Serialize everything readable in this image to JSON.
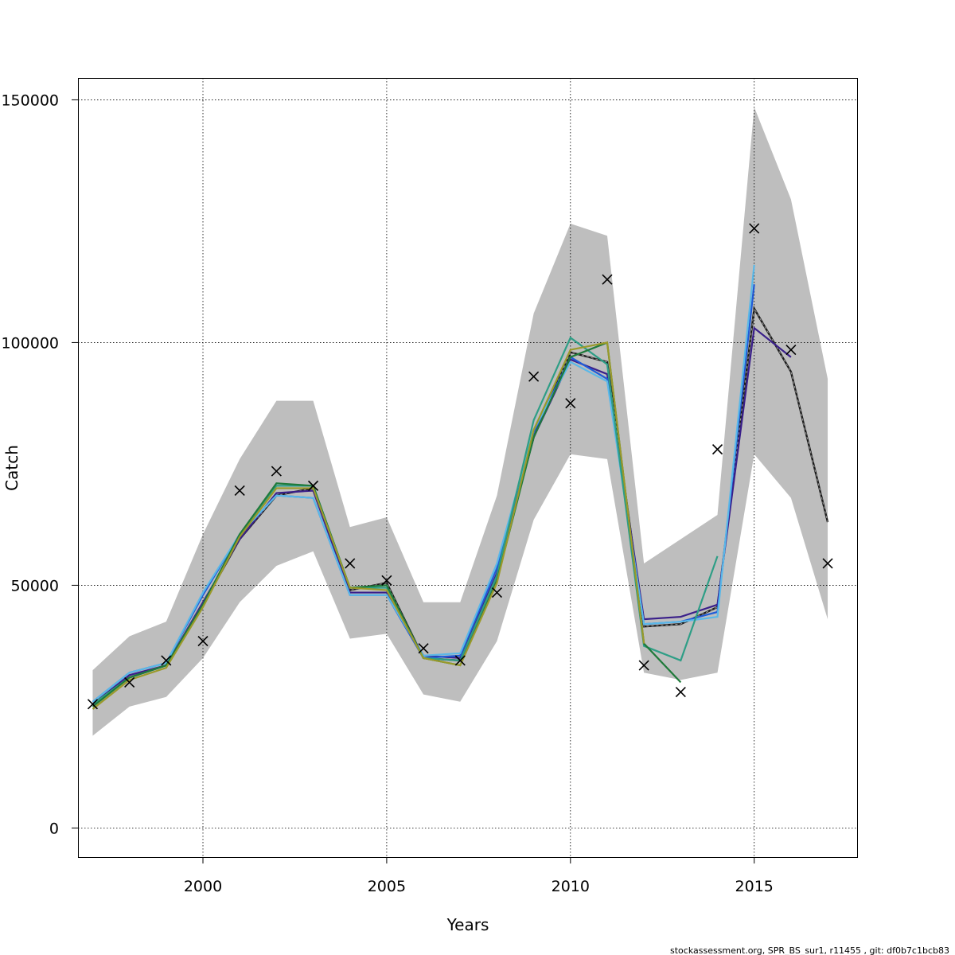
{
  "chart_data": {
    "type": "line",
    "xlabel": "Years",
    "ylabel": "Catch",
    "xlim": [
      1996.6,
      2017.8
    ],
    "ylim": [
      -6000,
      154500
    ],
    "xticks": [
      2000,
      2005,
      2010,
      2015
    ],
    "xtick_labels": [
      "2000",
      "2005",
      "2010",
      "2015"
    ],
    "yticks": [
      0,
      50000,
      100000,
      150000
    ],
    "ytick_labels": [
      "0",
      "50000",
      "100000",
      "150000"
    ],
    "grid": true,
    "band": {
      "color": "#bebebe",
      "x": [
        1997,
        1998,
        1999,
        2000,
        2001,
        2002,
        2003,
        2004,
        2005,
        2006,
        2007,
        2008,
        2009,
        2010,
        2011,
        2012,
        2013,
        2014,
        2015,
        2016,
        2017
      ],
      "upper": [
        32500,
        39500,
        42500,
        60500,
        76000,
        88000,
        88000,
        62000,
        64000,
        46500,
        46500,
        68500,
        106000,
        124500,
        122000,
        54500,
        59500,
        64500,
        148500,
        129500,
        92500
      ],
      "lower": [
        19000,
        25000,
        27000,
        35000,
        46500,
        54000,
        57000,
        39000,
        40000,
        27500,
        26000,
        38500,
        63500,
        77000,
        76000,
        32000,
        30500,
        32000,
        77000,
        68000,
        43000
      ]
    },
    "observed": {
      "marker": "x",
      "color": "#000000",
      "x": [
        1997,
        1998,
        1999,
        2000,
        2001,
        2002,
        2003,
        2004,
        2005,
        2006,
        2007,
        2008,
        2009,
        2010,
        2011,
        2012,
        2013,
        2014,
        2015,
        2016,
        2017
      ],
      "y": [
        25500,
        30000,
        34500,
        38500,
        69500,
        73500,
        70500,
        54500,
        51000,
        37000,
        34500,
        48500,
        93000,
        87500,
        113000,
        33500,
        28000,
        78000,
        123500,
        98500,
        54500
      ]
    },
    "series": [
      {
        "color": "#1c1c1c",
        "dashed": true,
        "x": [
          1997,
          1998,
          1999,
          2000,
          2001,
          2002,
          2003,
          2004,
          2005,
          2006,
          2007,
          2008,
          2009,
          2010,
          2011,
          2012,
          2013,
          2014,
          2015,
          2016,
          2017
        ],
        "y": [
          25500,
          31000,
          33500,
          46000,
          59500,
          68500,
          70000,
          49000,
          50500,
          35000,
          34500,
          52000,
          80500,
          98000,
          96000,
          41500,
          42000,
          45500,
          107000,
          94000,
          63000
        ]
      },
      {
        "color": "#3a1f8a",
        "x": [
          1997,
          1998,
          1999,
          2000,
          2001,
          2002,
          2003,
          2004,
          2005,
          2006,
          2007,
          2008,
          2009,
          2010,
          2011,
          2012,
          2013,
          2014,
          2015,
          2016
        ],
        "y": [
          25500,
          31500,
          33500,
          46500,
          59500,
          69000,
          69500,
          48500,
          48500,
          35500,
          35000,
          52500,
          80500,
          96500,
          93500,
          43000,
          43500,
          46000,
          103000,
          97000
        ]
      },
      {
        "color": "#1f5bd8",
        "x": [
          1997,
          1998,
          1999,
          2000,
          2001,
          2002,
          2003,
          2004,
          2005,
          2006,
          2007,
          2008,
          2009,
          2010,
          2011,
          2012,
          2013,
          2014,
          2015
        ],
        "y": [
          26000,
          32000,
          34000,
          48000,
          60500,
          68500,
          68000,
          48000,
          48000,
          35000,
          35500,
          53500,
          81500,
          97000,
          92500,
          42000,
          42500,
          44500,
          112000
        ]
      },
      {
        "color": "#5ab8e8",
        "x": [
          1997,
          1998,
          1999,
          2000,
          2001,
          2002,
          2003,
          2004,
          2005,
          2006,
          2007,
          2008,
          2009,
          2010,
          2011,
          2012,
          2013,
          2014,
          2015
        ],
        "y": [
          26000,
          32000,
          34000,
          48500,
          60500,
          68500,
          68000,
          48000,
          48000,
          35500,
          36000,
          54500,
          82000,
          96000,
          92000,
          42000,
          42500,
          43500,
          116000
        ]
      },
      {
        "color": "#2e9e86",
        "x": [
          1997,
          1998,
          1999,
          2000,
          2001,
          2002,
          2003,
          2004,
          2005,
          2006,
          2007,
          2008,
          2009,
          2010,
          2011,
          2012,
          2013,
          2014
        ],
        "y": [
          25500,
          31000,
          33500,
          46000,
          60500,
          70500,
          70500,
          49500,
          49500,
          35000,
          34500,
          52000,
          84000,
          101000,
          95500,
          37500,
          34500,
          56000
        ]
      },
      {
        "color": "#1f7a3a",
        "x": [
          1997,
          1998,
          1999,
          2000,
          2001,
          2002,
          2003,
          2004,
          2005,
          2006,
          2007,
          2008,
          2009,
          2010,
          2011,
          2012,
          2013
        ],
        "y": [
          25000,
          31000,
          33500,
          46000,
          60500,
          71000,
          70500,
          49500,
          50000,
          35000,
          33500,
          51000,
          80500,
          97000,
          100000,
          38000,
          30000
        ]
      },
      {
        "color": "#9a9a2a",
        "x": [
          1997,
          1998,
          1999,
          2000,
          2001,
          2002,
          2003,
          2004,
          2005,
          2006,
          2007,
          2008,
          2009,
          2010,
          2011,
          2012
        ],
        "y": [
          24500,
          30500,
          33000,
          45500,
          60000,
          70000,
          70000,
          49500,
          49000,
          35000,
          33500,
          50500,
          82000,
          98500,
          100000,
          38000
        ]
      }
    ]
  },
  "footer": {
    "credit": "stockassessment.org, SPR_BS_sur1, r11455 , git: df0b7c1bcb83"
  }
}
